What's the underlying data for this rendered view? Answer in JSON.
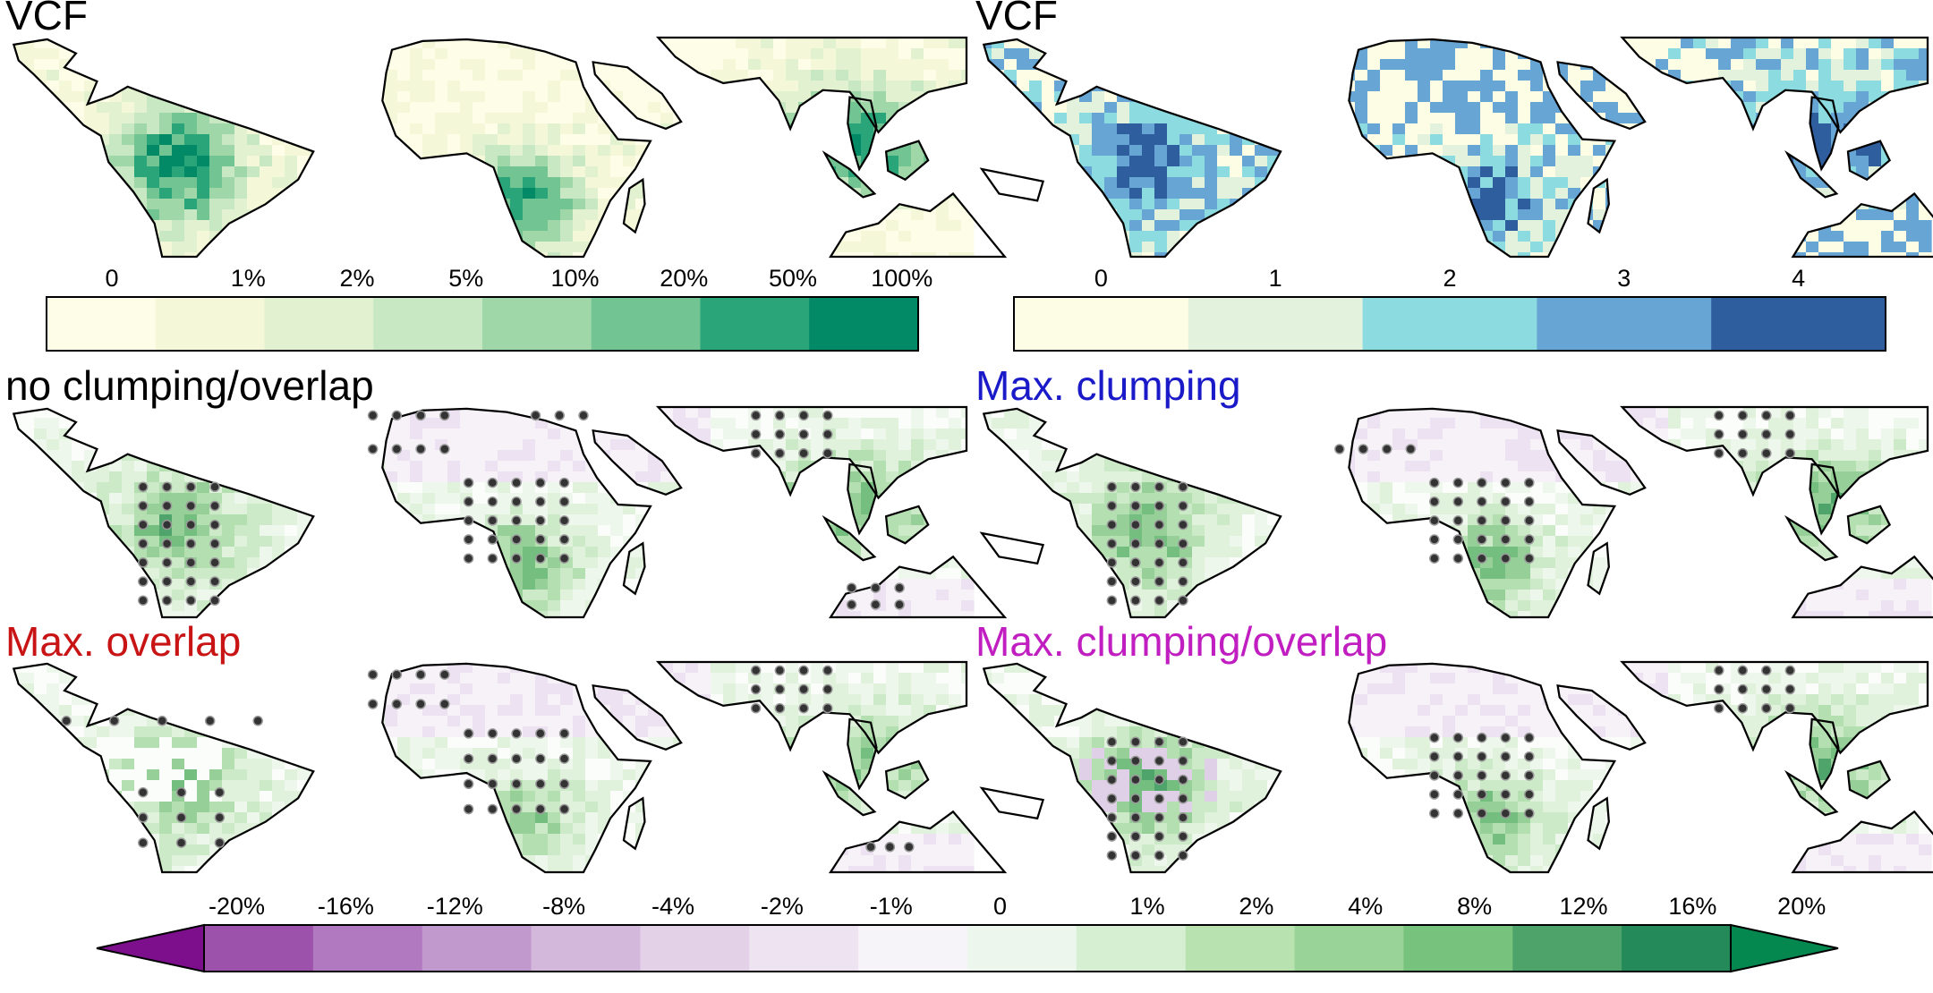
{
  "panels": [
    {
      "id": "vcf-fraction",
      "title": "VCF",
      "title_color": "#000000"
    },
    {
      "id": "vcf-class",
      "title": "VCF",
      "title_color": "#000000"
    },
    {
      "id": "no-clumping-overlap",
      "title": "no clumping/overlap",
      "title_color": "#000000"
    },
    {
      "id": "max-clumping",
      "title": "Max. clumping",
      "title_color": "#1a1ac8"
    },
    {
      "id": "max-overlap",
      "title": "Max. overlap",
      "title_color": "#c81414"
    },
    {
      "id": "max-clumping-overlap",
      "title": "Max. clumping/overlap",
      "title_color": "#c01ec0"
    }
  ],
  "chart_data": [
    {
      "type": "heatmap",
      "panel": "vcf-fraction",
      "title": "VCF",
      "colorbar": {
        "tick_labels": [
          "0",
          "1%",
          "2%",
          "5%",
          "10%",
          "20%",
          "50%",
          "100%"
        ],
        "colors": [
          "#fefee8",
          "#f4f8d8",
          "#e2f1cf",
          "#c8e8c3",
          "#9fd7a8",
          "#72c493",
          "#2aa57a",
          "#028a66"
        ]
      }
    },
    {
      "type": "heatmap",
      "panel": "vcf-class",
      "title": "VCF",
      "colorbar": {
        "tick_labels": [
          "0",
          "1",
          "2",
          "3",
          "4"
        ],
        "colors": [
          "#fdfde6",
          "#e3f2dc",
          "#8cdbe0",
          "#67a5d5",
          "#2e5e9e"
        ]
      }
    },
    {
      "type": "heatmap",
      "panels": [
        "no-clumping-overlap",
        "max-clumping",
        "max-overlap",
        "max-clumping-overlap"
      ],
      "colorbar": {
        "tick_labels": [
          "-20%",
          "-16%",
          "-12%",
          "-8%",
          "-4%",
          "-2%",
          "-1%",
          "0",
          "1%",
          "2%",
          "4%",
          "8%",
          "12%",
          "16%",
          "20%"
        ],
        "colors": [
          "#7d0e8c",
          "#9c51aa",
          "#b17ac0",
          "#c199cd",
          "#d3b8dc",
          "#e3d1e8",
          "#eee3f1",
          "#f7f4f9",
          "#edf6ed",
          "#d6efd2",
          "#b8e2b0",
          "#9ad397",
          "#77c27d",
          "#4ea36a",
          "#258a5a",
          "#04884f"
        ],
        "extend": "both"
      }
    }
  ]
}
